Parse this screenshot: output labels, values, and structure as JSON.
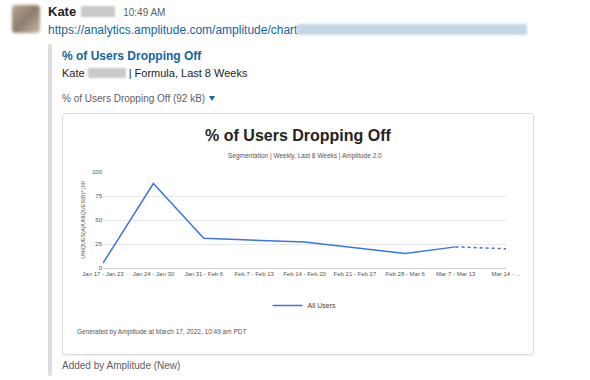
{
  "message": {
    "author": "Kate",
    "time": "10:49 AM",
    "link": "https://analytics.amplitude.com/amplitude/chart",
    "attachment": {
      "title": "% of Users Dropping Off",
      "byline_author": "Kate",
      "byline": "| Formula, Last 8 Weeks",
      "file": "% of Users Dropping Off (92 kB)"
    },
    "footer": "Added by Amplitude (New)"
  },
  "chart_data": {
    "type": "line",
    "title": "% of Users Dropping Off",
    "subtitle": "Segmentation | Weekly, Last 8 Weeks | Amplitude 2.0",
    "y_label": "UNIQUES(A)/UNIQUES(B)*100",
    "categories": [
      "Jan 17 - Jan 23",
      "Jan 24 - Jan 30",
      "Jan 31 - Feb 6",
      "Feb 7 - Feb 13",
      "Feb 14 - Feb 20",
      "Feb 21 - Feb 27",
      "Feb 28 - Mar 6",
      "Mar 7 - Mar 13",
      "Mar 14 - ..."
    ],
    "series": [
      {
        "name": "All Users",
        "color": "#3d73e8",
        "line_style": "solid",
        "values": [
          5,
          88,
          31,
          29,
          27,
          21,
          15,
          22,
          null
        ]
      },
      {
        "color": "#3d73e8",
        "line_style": "dotted",
        "values": [
          null,
          null,
          null,
          null,
          null,
          null,
          null,
          22,
          20
        ]
      }
    ],
    "ylim": [
      0,
      100
    ],
    "yticks": [
      0,
      25,
      50,
      75,
      100
    ],
    "grid": true,
    "legend": "bottom",
    "annotations": [
      "Generated by Amplitude at March 17, 2022, 10:49 am PDT"
    ]
  }
}
